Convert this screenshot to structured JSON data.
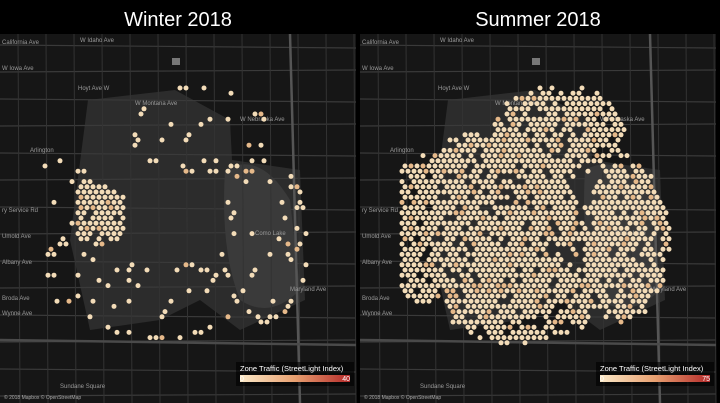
{
  "panels": [
    {
      "title": "Winter 2018",
      "legend": {
        "title": "Zone Traffic (StreetLight  Index)",
        "min": 0,
        "max": 40
      },
      "attribution": "© 2018 Mapbox © OpenStreetMap"
    },
    {
      "title": "Summer 2018",
      "legend": {
        "title": "Zone Traffic (StreetLight  Index)",
        "min": 0,
        "max": 75
      },
      "attribution": "© 2018 Mapbox © OpenStreetMap"
    }
  ],
  "street_labels": [
    "California Ave",
    "W Idaho Ave",
    "W Iowa Ave",
    "Hoyt Ave W",
    "W Montana Ave",
    "W Nebraska Ave",
    "Arlington",
    "ry Service Rd",
    "Umold Ave",
    "Albany Ave",
    "Maryland Ave",
    "Broda Ave",
    "Wynne Ave",
    "Sundane Square",
    "Como Lake"
  ]
}
